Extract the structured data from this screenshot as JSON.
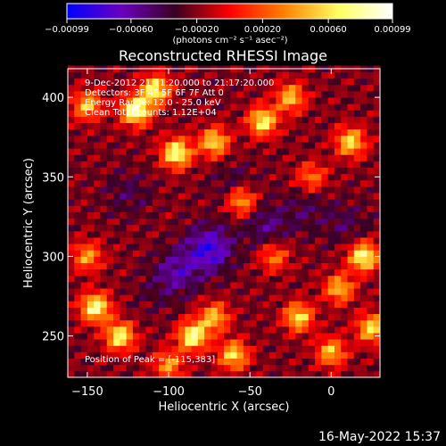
{
  "chart_data": {
    "type": "heatmap",
    "title": "Reconstructed RHESSI Image",
    "xlabel": "Heliocentric X (arcsec)",
    "ylabel": "Heliocentric Y (arcsec)",
    "xlim": [
      -162,
      30
    ],
    "ylim": [
      224,
      418
    ],
    "xticks": [
      -150,
      -100,
      -50,
      0
    ],
    "xtick_labels": [
      "−150",
      "−100",
      "−50",
      "0"
    ],
    "yticks": [
      250,
      300,
      350,
      400
    ],
    "ytick_labels": [
      "250",
      "300",
      "350",
      "400"
    ],
    "colorbar": {
      "min": -0.00099,
      "max": 0.00099,
      "ticks": [
        -0.00099,
        -0.0006,
        -0.0002,
        0.0002,
        0.0006,
        0.00099
      ],
      "tick_labels": [
        "−0.00099",
        "−0.00060",
        "−0.00020",
        "0.00020",
        "0.00060",
        "0.00099"
      ],
      "units_label": "(photons cm⁻² s⁻¹ asec⁻²)",
      "colormap": [
        "#0000ff",
        "#6a00c0",
        "#3a0020",
        "#ff0000",
        "#ff8000",
        "#ffff60",
        "#ffffff"
      ]
    },
    "annotations": [
      "9-Dec-2012 21:11:20.000 to 21:17:20.000",
      "Detectors: 3F 4F 5F 6F 7F   Att 0",
      "Energy Range: 12.0 - 25.0 keV",
      "Clean     Total counts: 1.12E+04"
    ],
    "peak_label": "Position of Peak = [-115,383]",
    "peak": [
      -115,
      383
    ],
    "hot_spots": [
      {
        "x": -120,
        "y": 392,
        "v": 0.0009
      },
      {
        "x": -108,
        "y": 405,
        "v": 0.0007
      },
      {
        "x": -95,
        "y": 365,
        "v": 0.0008
      },
      {
        "x": -72,
        "y": 372,
        "v": 0.0006
      },
      {
        "x": -42,
        "y": 385,
        "v": 0.0007
      },
      {
        "x": -25,
        "y": 400,
        "v": 0.0005
      },
      {
        "x": -150,
        "y": 395,
        "v": 0.0005
      },
      {
        "x": -55,
        "y": 335,
        "v": 0.0005
      },
      {
        "x": -12,
        "y": 350,
        "v": 0.0003
      },
      {
        "x": 12,
        "y": 372,
        "v": 0.0006
      },
      {
        "x": 20,
        "y": 300,
        "v": 0.0008
      },
      {
        "x": 5,
        "y": 280,
        "v": 0.0005
      },
      {
        "x": 25,
        "y": 255,
        "v": 0.0006
      },
      {
        "x": -145,
        "y": 268,
        "v": 0.0008
      },
      {
        "x": -130,
        "y": 250,
        "v": 0.0007
      },
      {
        "x": -150,
        "y": 300,
        "v": 0.0004
      },
      {
        "x": -85,
        "y": 250,
        "v": 0.0008
      },
      {
        "x": -72,
        "y": 262,
        "v": 0.0005
      },
      {
        "x": -60,
        "y": 238,
        "v": 0.0006
      },
      {
        "x": -20,
        "y": 262,
        "v": 0.0006
      },
      {
        "x": 0,
        "y": 240,
        "v": 0.0005
      },
      {
        "x": -100,
        "y": 232,
        "v": 0.0004
      },
      {
        "x": -35,
        "y": 300,
        "v": 0.0003
      }
    ],
    "cold_spots": [
      {
        "x": -75,
        "y": 305,
        "v": -0.0008
      },
      {
        "x": -95,
        "y": 290,
        "v": -0.0006
      },
      {
        "x": -40,
        "y": 320,
        "v": -0.0005
      },
      {
        "x": -15,
        "y": 330,
        "v": -0.0004
      },
      {
        "x": -125,
        "y": 340,
        "v": -0.0004
      },
      {
        "x": -60,
        "y": 345,
        "v": -0.0004
      },
      {
        "x": 10,
        "y": 320,
        "v": -0.0004
      },
      {
        "x": -110,
        "y": 275,
        "v": -0.0003
      }
    ]
  },
  "footer": {
    "timestamp": "16-May-2022 15:37"
  }
}
